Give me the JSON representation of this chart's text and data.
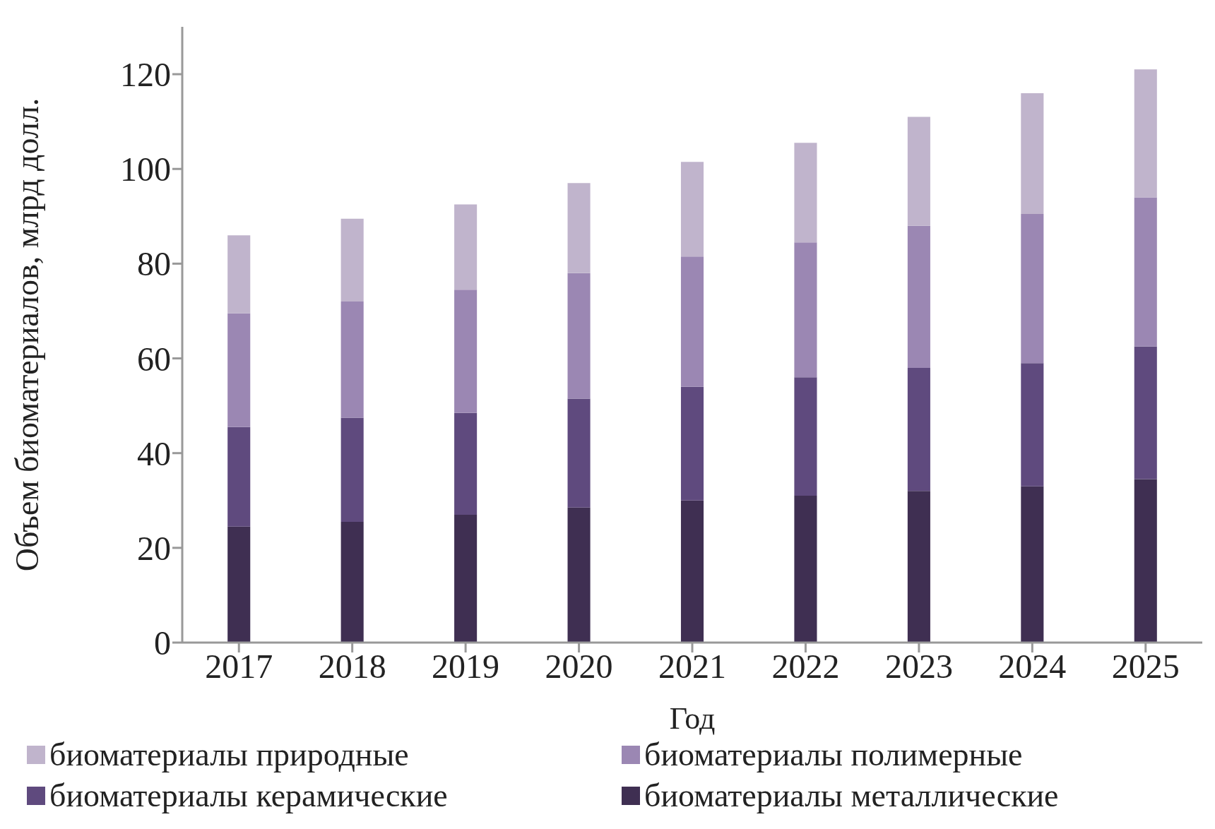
{
  "chart_data": {
    "type": "bar",
    "stacked": true,
    "xlabel": "Год",
    "ylabel": "Объем биоматериалов, млрд долл.",
    "categories": [
      "2017",
      "2018",
      "2019",
      "2020",
      "2021",
      "2022",
      "2023",
      "2024",
      "2025"
    ],
    "series": [
      {
        "name": "биоматериалы металлические",
        "color": "#3f2f52",
        "values": [
          24.5,
          25.5,
          27,
          28.5,
          30,
          31,
          32,
          33,
          34.5
        ]
      },
      {
        "name": "биоматериалы керамические",
        "color": "#5f4a7e",
        "values": [
          21,
          22,
          21.5,
          23,
          24,
          25,
          26,
          26,
          28
        ]
      },
      {
        "name": "биоматериалы полимерные",
        "color": "#9b87b3",
        "values": [
          24,
          24.5,
          26,
          26.5,
          27.5,
          28.5,
          30,
          31.5,
          31.5
        ]
      },
      {
        "name": "биоматериалы природные",
        "color": "#c0b4cc",
        "values": [
          16.5,
          17.5,
          18,
          19,
          20,
          21,
          23,
          25.5,
          27
        ]
      }
    ],
    "ylim": [
      0,
      130
    ],
    "yticks": [
      0,
      20,
      40,
      60,
      80,
      100,
      120
    ],
    "grid": false,
    "legend": "bottom"
  }
}
